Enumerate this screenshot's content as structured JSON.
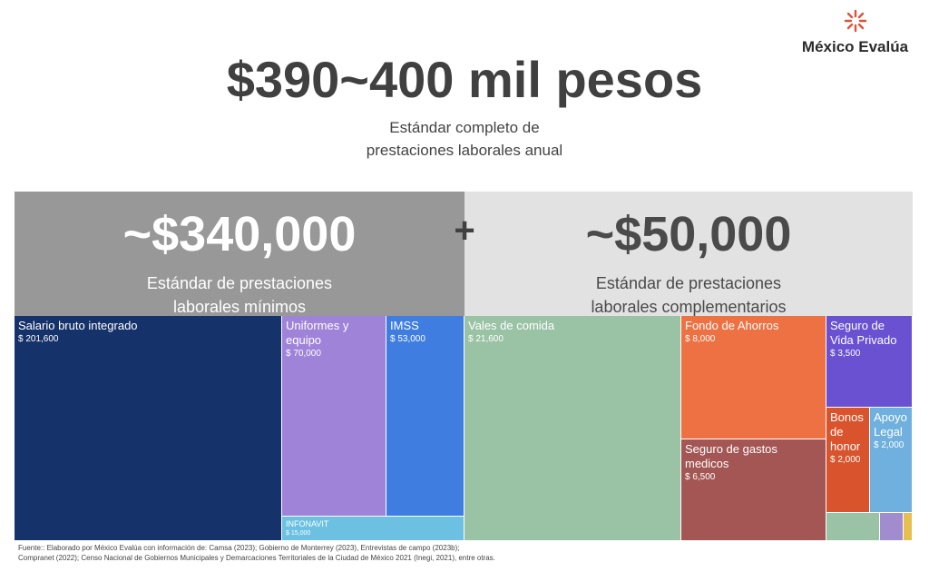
{
  "brand": {
    "name": "México Evalúa",
    "icon": "starburst-logo-icon"
  },
  "headline": "$390~400 mil pesos",
  "subheadline": [
    "Estándar completo de",
    "prestaciones laborales anual"
  ],
  "bands": {
    "left": {
      "amount": "~$340,000",
      "label": [
        "Estándar de prestaciones",
        "laborales mínimos"
      ]
    },
    "plus": "+",
    "right": {
      "amount": "~$50,000",
      "label": [
        "Estándar de prestaciones",
        "laborales complementarios"
      ]
    }
  },
  "chart_data": {
    "type": "treemap",
    "groups": [
      {
        "name": "Estándar de prestaciones laborales mínimos",
        "items": [
          {
            "label": "Salario bruto integrado",
            "value": 201600,
            "display": "$ 201,600",
            "color": "#16326a"
          },
          {
            "label": "Uniformes y equipo",
            "value": 70000,
            "display": "$ 70,000",
            "color": "#9f83d8"
          },
          {
            "label": "IMSS",
            "value": 53000,
            "display": "$ 53,000",
            "color": "#3f7ee0"
          },
          {
            "label": "INFONAVIT",
            "value": 15000,
            "display": "$ 15,000",
            "color": "#6cc1e2"
          }
        ]
      },
      {
        "name": "Estándar de prestaciones laborales complementarios",
        "items": [
          {
            "label": "Vales de comida",
            "value": 21600,
            "display": "$ 21,600",
            "color": "#9ac2a5"
          },
          {
            "label": "Fondo de Ahorros",
            "value": 8000,
            "display": "$ 8,000",
            "color": "#ed7142"
          },
          {
            "label": "Seguro de gastos medicos",
            "value": 6500,
            "display": "$ 6,500",
            "color": "#a35654"
          },
          {
            "label": "Seguro de Vida Privado",
            "value": 3500,
            "display": "$ 3,500",
            "color": "#6951d1"
          },
          {
            "label": "Bonos de honor",
            "value": 2000,
            "display": "$ 2,000",
            "color": "#d9542c"
          },
          {
            "label": "Apoyo Legal",
            "value": 2000,
            "display": "$ 2,000",
            "color": "#6fb0de"
          },
          {
            "label": "",
            "value": 900,
            "display": "",
            "color": "#9ac2a5"
          },
          {
            "label": "",
            "value": 300,
            "display": "",
            "color": "#a28cd0"
          },
          {
            "label": "",
            "value": 100,
            "display": "",
            "color": "#e6c04e"
          }
        ]
      }
    ]
  },
  "source": [
    "Fuente:: Elaborado por México Evalúa con información de: Camsa (2023); Gobierno de Monterrey (2023), Entrevistas de campo (2023b);",
    "Compranet (2022); Censo Nacional de Gobiernos Municipales y Demarcaciones Territoriales de la Ciudad de México 2021 (Inegi, 2021), entre otras."
  ]
}
